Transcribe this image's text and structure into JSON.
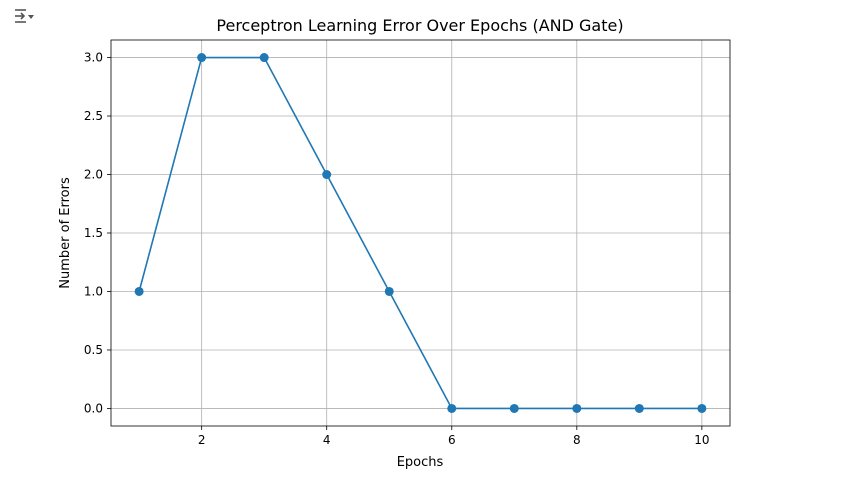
{
  "toolbar": {
    "output_icon": "output-collapse-icon"
  },
  "chart_data": {
    "type": "line",
    "title": "Perceptron Learning Error Over Epochs (AND Gate)",
    "xlabel": "Epochs",
    "ylabel": "Number of Errors",
    "x": [
      1,
      2,
      3,
      4,
      5,
      6,
      7,
      8,
      9,
      10
    ],
    "series": [
      {
        "values": [
          1,
          3,
          3,
          2,
          1,
          0,
          0,
          0,
          0,
          0
        ],
        "color": "#1f77b4",
        "marker": "circle"
      }
    ],
    "xlim": [
      0.55,
      10.45
    ],
    "ylim": [
      -0.15,
      3.15
    ],
    "xticks": [
      2,
      4,
      6,
      8,
      10
    ],
    "xtick_labels": [
      "2",
      "4",
      "6",
      "8",
      "10"
    ],
    "yticks": [
      0,
      0.5,
      1,
      1.5,
      2,
      2.5,
      3
    ],
    "ytick_labels": [
      "0.0",
      "0.5",
      "1.0",
      "1.5",
      "2.0",
      "2.5",
      "3.0"
    ],
    "grid": true,
    "legend": "none"
  }
}
